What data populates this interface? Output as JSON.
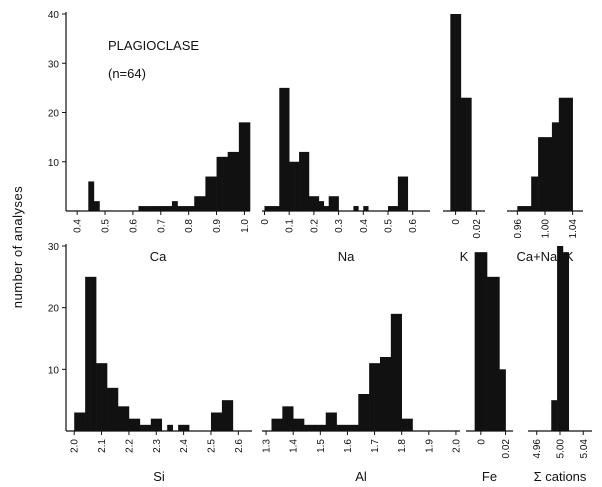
{
  "chart_data": {
    "type": "bar",
    "ylabel": "number of analyses",
    "annotation": {
      "title": "PLAGIOCLASE",
      "n_label": "(n=64)"
    },
    "panels": [
      {
        "xlabel": "Ca",
        "x_ticks": [
          "0.4",
          "0.5",
          "0.6",
          "0.7",
          "0.8",
          "0.9",
          "1.0"
        ],
        "ylim": [
          0,
          40
        ],
        "y_ticks": [
          "10",
          "20",
          "30",
          "40"
        ],
        "bin_starts": [
          0.36,
          0.38,
          0.4,
          0.42,
          0.44,
          0.46,
          0.48,
          0.5,
          0.52,
          0.54,
          0.56,
          0.58,
          0.6,
          0.62,
          0.64,
          0.66,
          0.68,
          0.7,
          0.72,
          0.74,
          0.76,
          0.78,
          0.8,
          0.82,
          0.84,
          0.86,
          0.88,
          0.9,
          0.92,
          0.94,
          0.96,
          0.98,
          1.0
        ],
        "values": [
          0,
          0,
          0,
          0,
          6,
          2,
          0,
          0,
          0,
          0,
          0,
          0,
          0,
          1,
          1,
          1,
          1,
          1,
          1,
          2,
          1,
          1,
          1,
          3,
          3,
          7,
          7,
          11,
          11,
          12,
          12,
          18,
          18
        ]
      },
      {
        "xlabel": "Na",
        "x_ticks": [
          "0",
          "0.1",
          "0.2",
          "0.3",
          "0.4",
          "0.5",
          "0.6"
        ],
        "ylim": [
          0,
          40
        ],
        "y_ticks": [],
        "bin_starts": [
          0.0,
          0.02,
          0.04,
          0.06,
          0.08,
          0.1,
          0.12,
          0.14,
          0.16,
          0.18,
          0.2,
          0.22,
          0.24,
          0.26,
          0.28,
          0.3,
          0.32,
          0.34,
          0.36,
          0.38,
          0.4,
          0.42,
          0.44,
          0.46,
          0.48,
          0.5,
          0.52,
          0.54,
          0.56,
          0.58,
          0.6,
          0.62,
          0.64
        ],
        "values": [
          1,
          1,
          1,
          25,
          25,
          10,
          10,
          12,
          12,
          3,
          3,
          2,
          1,
          3,
          3,
          0,
          0,
          0,
          1,
          0,
          1,
          0,
          0,
          0,
          0,
          1,
          1,
          7,
          7,
          0,
          0,
          0,
          0
        ]
      },
      {
        "xlabel": "K",
        "x_ticks": [
          "0",
          "0.02"
        ],
        "ylim": [
          0,
          40
        ],
        "y_ticks": [],
        "bin_starts": [
          -0.005,
          0.0,
          0.005,
          0.01,
          0.015,
          0.02
        ],
        "values": [
          40,
          40,
          23,
          23,
          0,
          0
        ]
      },
      {
        "xlabel": "Ca+Na+K",
        "x_ticks": [
          "0.96",
          "1.00",
          "1.04"
        ],
        "ylim": [
          0,
          40
        ],
        "y_ticks": [],
        "bin_starts": [
          0.95,
          0.96,
          0.97,
          0.98,
          0.99,
          1.0,
          1.01,
          1.02,
          1.03,
          1.04
        ],
        "values": [
          0,
          1,
          1,
          7,
          15,
          15,
          18,
          23,
          23,
          0
        ]
      },
      {
        "xlabel": "Si",
        "x_ticks": [
          "2.0",
          "2.1",
          "2.2",
          "2.3",
          "2.4",
          "2.5",
          "2.6"
        ],
        "ylim": [
          0,
          30
        ],
        "y_ticks": [
          "10",
          "20",
          "30"
        ],
        "bin_starts": [
          1.98,
          2.0,
          2.02,
          2.04,
          2.06,
          2.08,
          2.1,
          2.12,
          2.14,
          2.16,
          2.18,
          2.2,
          2.22,
          2.24,
          2.26,
          2.28,
          2.3,
          2.32,
          2.34,
          2.36,
          2.38,
          2.4,
          2.42,
          2.44,
          2.46,
          2.48,
          2.5,
          2.52,
          2.54,
          2.56,
          2.58,
          2.6,
          2.62
        ],
        "values": [
          0,
          3,
          3,
          25,
          25,
          11,
          11,
          7,
          7,
          4,
          4,
          2,
          2,
          1,
          1,
          2,
          2,
          0,
          1,
          0,
          1,
          1,
          0,
          0,
          0,
          0,
          3,
          3,
          5,
          5,
          0,
          0,
          0
        ]
      },
      {
        "xlabel": "Al",
        "x_ticks": [
          "1.3",
          "1.4",
          "1.5",
          "1.6",
          "1.7",
          "1.8",
          "1.9",
          "2.0"
        ],
        "ylim": [
          0,
          30
        ],
        "y_ticks": [],
        "bin_starts": [
          1.3,
          1.32,
          1.34,
          1.36,
          1.38,
          1.4,
          1.42,
          1.44,
          1.46,
          1.48,
          1.5,
          1.52,
          1.54,
          1.56,
          1.58,
          1.6,
          1.62,
          1.64,
          1.66,
          1.68,
          1.7,
          1.72,
          1.74,
          1.76,
          1.78,
          1.8,
          1.82,
          1.84,
          1.86,
          1.88,
          1.9,
          1.92,
          1.94,
          1.96,
          1.98
        ],
        "values": [
          0,
          2,
          2,
          4,
          4,
          2,
          2,
          1,
          1,
          1,
          1,
          3,
          3,
          1,
          1,
          1,
          1,
          6,
          6,
          11,
          11,
          12,
          12,
          19,
          19,
          2,
          2,
          0,
          0,
          0,
          0,
          0,
          0,
          0,
          0
        ]
      },
      {
        "xlabel": "Fe",
        "x_ticks": [
          "0",
          "0.02"
        ],
        "ylim": [
          0,
          30
        ],
        "y_ticks": [],
        "bin_starts": [
          -0.005,
          0.0,
          0.005,
          0.01,
          0.015,
          0.02
        ],
        "values": [
          29,
          29,
          25,
          25,
          10,
          0
        ]
      },
      {
        "xlabel": "Σ cations",
        "x_ticks": [
          "4.96",
          "5.00",
          "5.04"
        ],
        "ylim": [
          0,
          30
        ],
        "y_ticks": [],
        "bin_starts": [
          4.975,
          4.985,
          4.995,
          5.005,
          5.015,
          5.025
        ],
        "values": [
          0,
          5,
          30,
          29,
          0,
          0
        ]
      }
    ]
  }
}
